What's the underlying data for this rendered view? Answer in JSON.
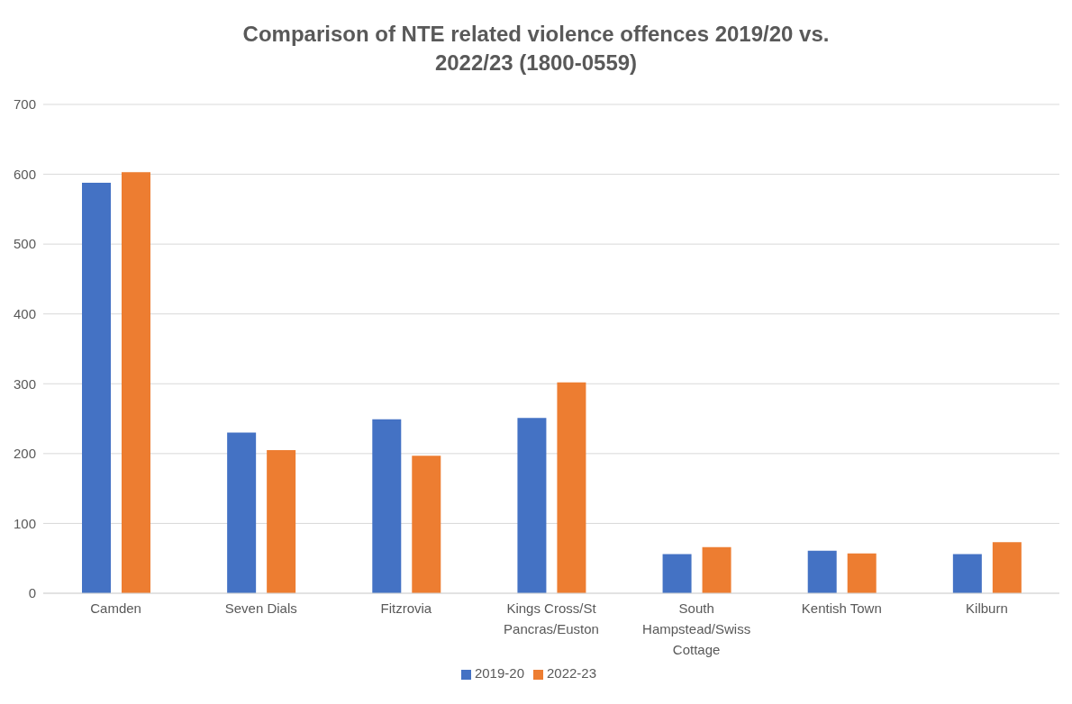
{
  "chart_data": {
    "type": "bar",
    "title": "Comparison of NTE related violence offences 2019/20 vs. 2022/23 (1800-0559)",
    "categories": [
      "Camden",
      "Seven Dials",
      "Fitzrovia",
      "Kings Cross/St Pancras/Euston",
      "South Hampstead/Swiss Cottage",
      "Kentish Town",
      "Kilburn"
    ],
    "series": [
      {
        "name": "2019-20",
        "color": "#4472c4",
        "values": [
          588,
          230,
          249,
          251,
          56,
          61,
          56
        ]
      },
      {
        "name": "2022-23",
        "color": "#ed7d31",
        "values": [
          603,
          205,
          197,
          302,
          66,
          57,
          73
        ]
      }
    ],
    "ylim": [
      0,
      700
    ],
    "yticks": [
      0,
      100,
      200,
      300,
      400,
      500,
      600,
      700
    ],
    "grid": "y",
    "legend": "bottom"
  }
}
